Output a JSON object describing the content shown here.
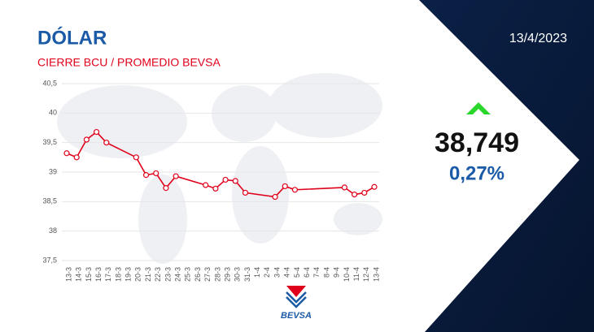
{
  "header": {
    "title": "DÓLAR",
    "subtitle": "CIERRE BCU / PROMEDIO BEVSA",
    "date": "13/4/2023"
  },
  "quote": {
    "value": "38,749",
    "change": "0,27%"
  },
  "logo": "BEVSA",
  "chart_data": {
    "type": "line",
    "categories": [
      "13-3",
      "14-3",
      "15-3",
      "16-3",
      "17-3",
      "18-3",
      "19-3",
      "20-3",
      "21-3",
      "22-3",
      "23-3",
      "24-3",
      "25-3",
      "26-3",
      "27-3",
      "28-3",
      "29-3",
      "30-3",
      "31-3",
      "1-4",
      "2-4",
      "3-4",
      "4-4",
      "5-4",
      "6-4",
      "7-4",
      "8-4",
      "9-4",
      "10-4",
      "11-4",
      "12-4",
      "13-4"
    ],
    "series": [
      {
        "color": "#e0001b",
        "x": [
          "13-3",
          "14-3",
          "15-3",
          "16-3",
          "17-3",
          "20-3",
          "21-3",
          "22-3",
          "23-3",
          "24-3",
          "27-3",
          "28-3",
          "29-3",
          "30-3",
          "31-3",
          "3-4",
          "4-4",
          "5-4",
          "10-4",
          "11-4",
          "12-4",
          "13-4"
        ],
        "values": [
          39.32,
          39.25,
          39.55,
          39.68,
          39.5,
          39.25,
          38.95,
          38.98,
          38.73,
          38.93,
          38.78,
          38.72,
          38.87,
          38.85,
          38.65,
          38.58,
          38.76,
          38.7,
          38.74,
          38.62,
          38.65,
          38.749
        ]
      }
    ],
    "ylim": [
      37.5,
      40.5
    ],
    "yticks": [
      {
        "value": 37.5,
        "label": "37,5"
      },
      38,
      {
        "value": 38.5,
        "label": "38,5"
      },
      39,
      {
        "value": 39.5,
        "label": "39,5"
      },
      40,
      {
        "value": 40.5,
        "label": "40,5"
      }
    ],
    "grid": true
  }
}
